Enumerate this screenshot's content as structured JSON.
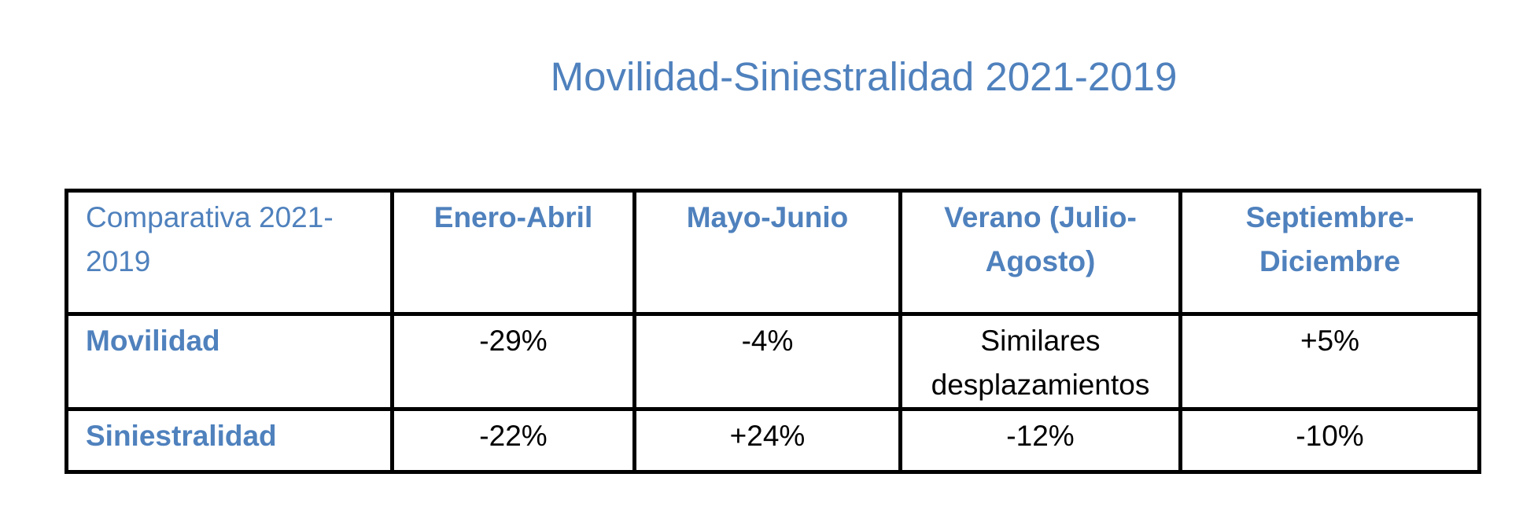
{
  "title": "Movilidad-Siniestralidad 2021-2019",
  "table": {
    "corner_label": "Comparativa 2021-2019",
    "columns": [
      "Enero-Abril",
      "Mayo-Junio",
      "Verano (Julio-Agosto)",
      "Septiembre-Diciembre"
    ],
    "rows": [
      {
        "label": "Movilidad",
        "values": [
          "-29%",
          "-4%",
          "Similares desplazamientos",
          "+5%"
        ]
      },
      {
        "label": "Siniestralidad",
        "values": [
          "-22%",
          "+24%",
          "-12%",
          "-10%"
        ]
      }
    ]
  },
  "colors": {
    "accent": "#4f81bd",
    "text": "#000000",
    "border": "#000000"
  }
}
